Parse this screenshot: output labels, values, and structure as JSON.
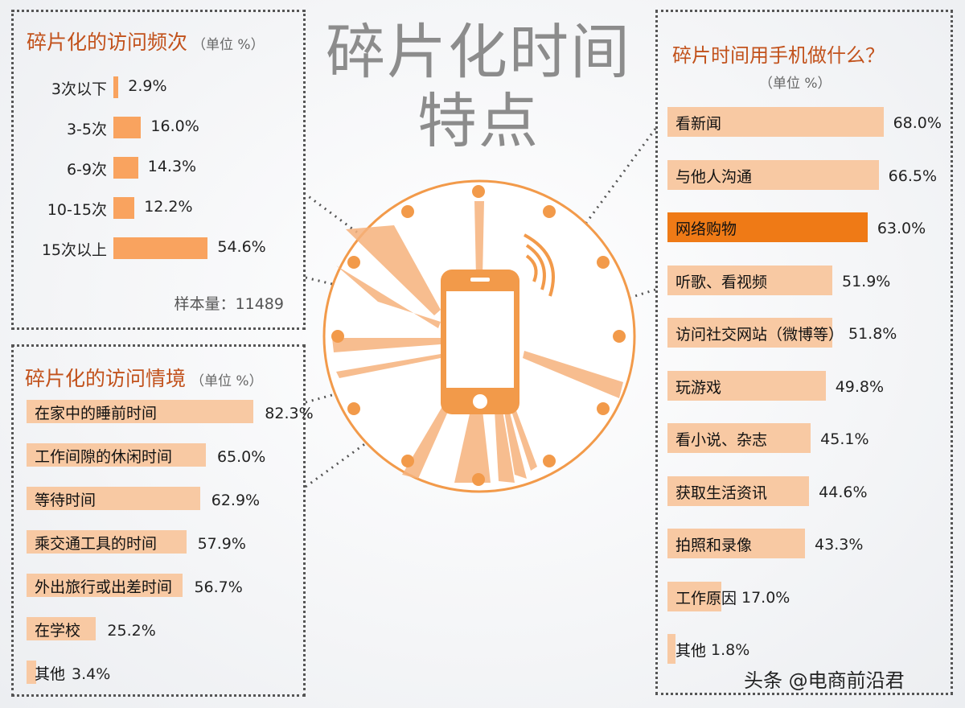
{
  "main_title_line1": "碎片化时间",
  "main_title_line2": "特点",
  "watermark": "头条 @电商前沿君",
  "colors": {
    "bar": "#f9a35f",
    "bar_light": "#f8c9a3",
    "bar_highlight": "#ef7a16",
    "title": "#c2521c",
    "ring": "#f29a4a"
  },
  "icon": "smartphone-icon",
  "chart_data": [
    {
      "type": "bar",
      "title": "碎片化的访问频次",
      "unit": "（单位 %）",
      "categories": [
        "3次以下",
        "3-5次",
        "6-9次",
        "10-15次",
        "15次以上"
      ],
      "values": [
        2.9,
        16.0,
        14.3,
        12.2,
        54.6
      ],
      "value_labels": [
        "2.9%",
        "16.0%",
        "14.3%",
        "12.2%",
        "54.6%"
      ],
      "sample_size": "样本量：11489"
    },
    {
      "type": "bar",
      "title": "碎片化的访问情境",
      "unit": "（单位 %）",
      "categories": [
        "在家中的睡前时间",
        "工作间隙的休闲时间",
        "等待时间",
        "乘交通工具的时间",
        "外出旅行或出差时间",
        "在学校",
        "其他"
      ],
      "values": [
        82.3,
        65.0,
        62.9,
        57.9,
        56.7,
        25.2,
        3.4
      ],
      "value_labels": [
        "82.3%",
        "65.0%",
        "62.9%",
        "57.9%",
        "56.7%",
        "25.2%",
        "3.4%"
      ]
    },
    {
      "type": "bar",
      "title": "碎片时间用手机做什么？",
      "unit": "（单位 %）",
      "categories": [
        "看新闻",
        "与他人沟通",
        "网络购物",
        "听歌、看视频",
        "访问社交网站（微博等）",
        "玩游戏",
        "看小说、杂志",
        "获取生活资讯",
        "拍照和录像",
        "工作原因",
        "其他"
      ],
      "values": [
        68.0,
        66.5,
        63.0,
        51.9,
        51.8,
        49.8,
        45.1,
        44.6,
        43.3,
        17.0,
        1.8
      ],
      "value_labels": [
        "68.0%",
        "66.5%",
        "63.0%",
        "51.9%",
        "51.8%",
        "49.8%",
        "45.1%",
        "44.6%",
        "43.3%",
        "17.0%",
        "1.8%"
      ],
      "highlight": "网络购物"
    }
  ]
}
